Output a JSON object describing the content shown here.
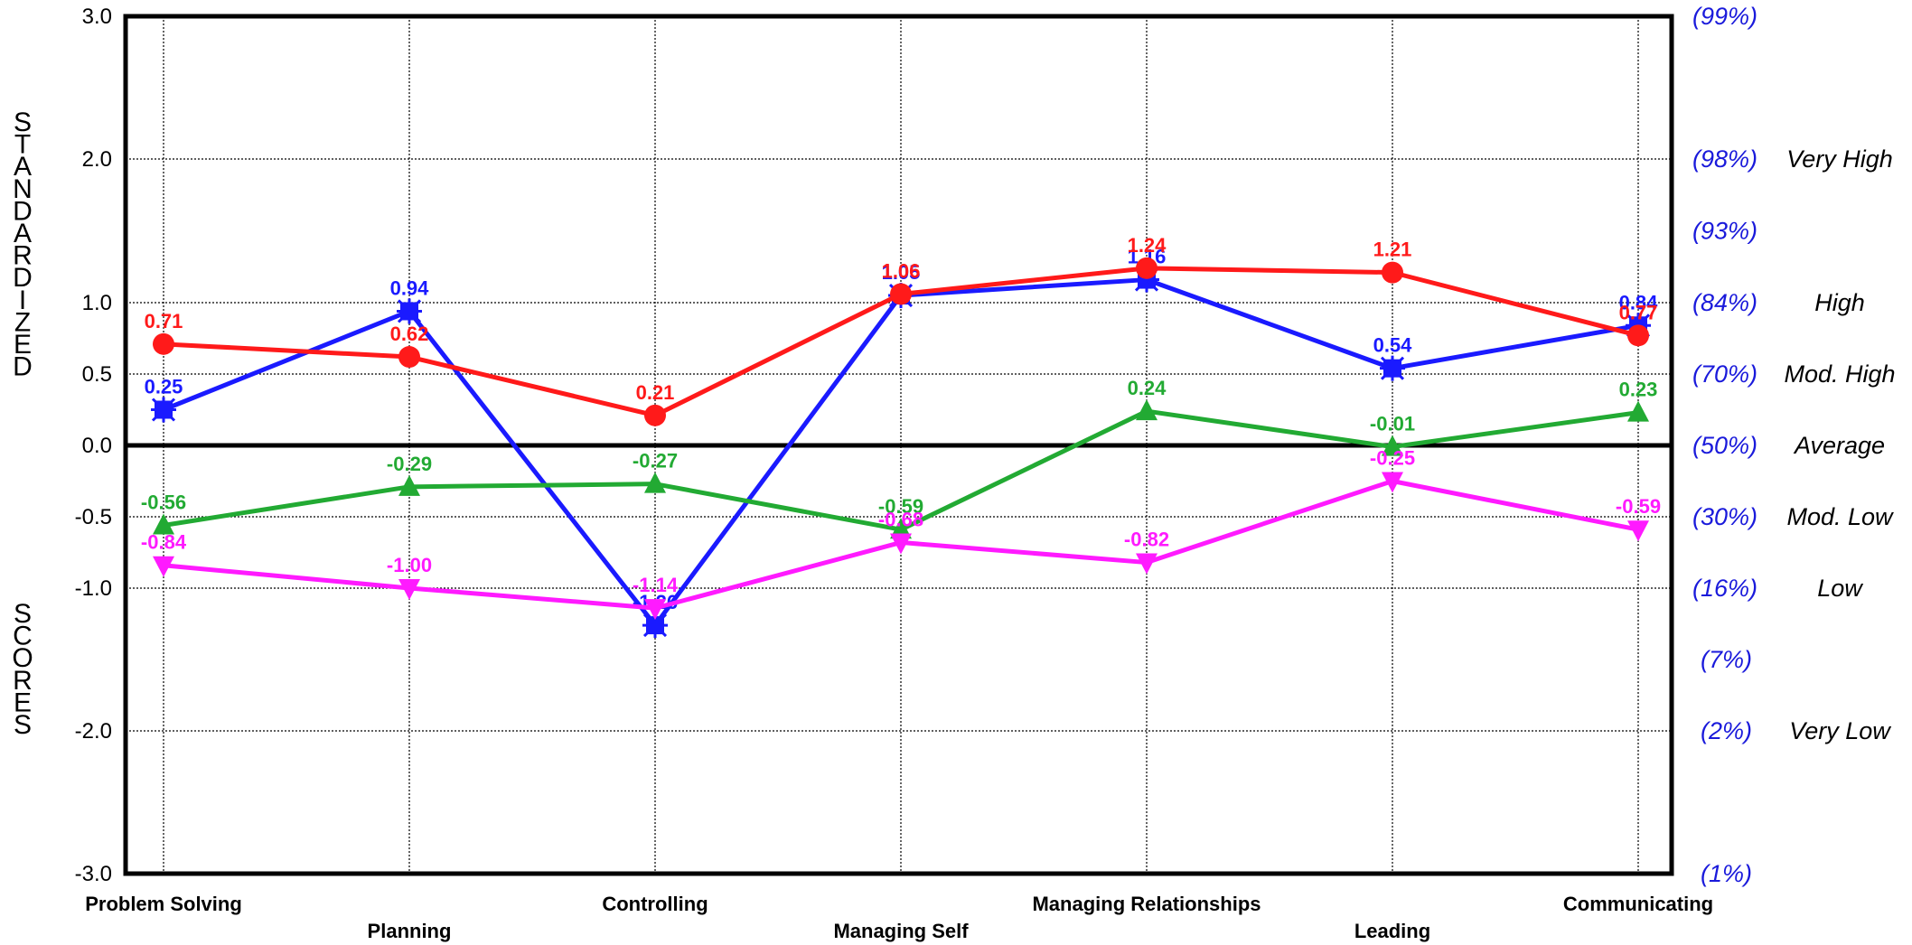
{
  "chart_data": {
    "type": "line",
    "categories": [
      "Problem Solving",
      "Planning",
      "Controlling",
      "Managing Self",
      "Managing Relationships",
      "Leading",
      "Communicating"
    ],
    "ylim": [
      -3,
      3
    ],
    "yticks": [
      {
        "value": 3,
        "label": "3.0"
      },
      {
        "value": 2,
        "label": "2.0"
      },
      {
        "value": 1,
        "label": "1.0"
      },
      {
        "value": 0.5,
        "label": "0.5"
      },
      {
        "value": 0,
        "label": "0.0"
      },
      {
        "value": -0.5,
        "label": "-0.5"
      },
      {
        "value": -1,
        "label": "-1.0"
      },
      {
        "value": -2,
        "label": "-2.0"
      },
      {
        "value": -3,
        "label": "-3.0"
      }
    ],
    "ylabel_parts": [
      "STANDARDIZED",
      "SCORES"
    ],
    "right_axis": [
      {
        "value": 3,
        "pct": "(99%)",
        "band": ""
      },
      {
        "value": 2,
        "pct": "(98%)",
        "band": "Very High"
      },
      {
        "value": 1.5,
        "pct": "(93%)",
        "band": ""
      },
      {
        "value": 1,
        "pct": "(84%)",
        "band": "High"
      },
      {
        "value": 0.5,
        "pct": "(70%)",
        "band": "Mod. High"
      },
      {
        "value": 0,
        "pct": "(50%)",
        "band": "Average"
      },
      {
        "value": -0.5,
        "pct": "(30%)",
        "band": "Mod. Low"
      },
      {
        "value": -1,
        "pct": "(16%)",
        "band": "Low"
      },
      {
        "value": -1.5,
        "pct": "(7%)",
        "band": ""
      },
      {
        "value": -2,
        "pct": "(2%)",
        "band": "Very Low"
      },
      {
        "value": -3,
        "pct": "(1%)",
        "band": ""
      }
    ],
    "grid": true,
    "series": [
      {
        "color": "#1a1aff",
        "marker": "asterisk-square",
        "values": [
          0.25,
          0.94,
          -1.26,
          1.05,
          1.16,
          0.54,
          0.84
        ],
        "labels": [
          "0.25",
          "0.94",
          "-1.26",
          "1.05",
          "1.16",
          "0.54",
          "0.84"
        ]
      },
      {
        "color": "#ff1a1a",
        "marker": "circle",
        "values": [
          0.71,
          0.62,
          0.21,
          1.06,
          1.24,
          1.21,
          0.77
        ],
        "labels": [
          "0.71",
          "0.62",
          "0.21",
          "1.06",
          "1.24",
          "1.21",
          "0.77"
        ]
      },
      {
        "color": "#22aa33",
        "marker": "triangle-up",
        "values": [
          -0.56,
          -0.29,
          -0.27,
          -0.59,
          0.24,
          -0.01,
          0.23
        ],
        "labels": [
          "-0.56",
          "-0.29",
          "-0.27",
          "-0.59",
          "0.24",
          "-0.01",
          "0.23"
        ]
      },
      {
        "color": "#ff1aff",
        "marker": "triangle-down",
        "values": [
          -0.84,
          -1.0,
          -1.14,
          -0.68,
          -0.82,
          -0.25,
          -0.59
        ],
        "labels": [
          "-0.84",
          "-1.00",
          "-1.14",
          "-0.68",
          "-0.82",
          "-0.25",
          "-0.59"
        ]
      }
    ]
  }
}
